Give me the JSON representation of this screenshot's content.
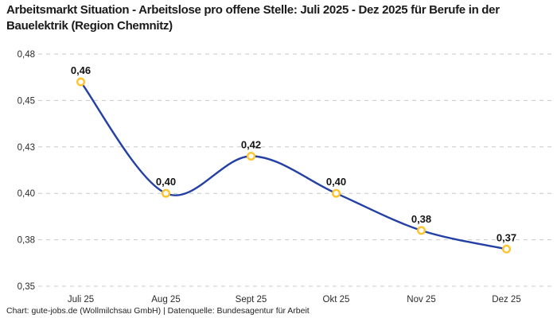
{
  "header": {
    "title": "Arbeitsmarkt Situation - Arbeitslose pro offene Stelle: Juli 2025 - Dez 2025 für Berufe in der Bauelektrik (Region Chemnitz)"
  },
  "footer": {
    "attribution": "Chart: gute-jobs.de (Wollmilchsau GmbH) | Datenquelle: Bundesagentur für Arbeit"
  },
  "chart_data": {
    "type": "line",
    "title": "Arbeitsmarkt Situation - Arbeitslose pro offene Stelle: Juli 2025 - Dez 2025 für Berufe in der Bauelektrik (Region Chemnitz)",
    "categories": [
      "Juli 25",
      "Aug 25",
      "Sept 25",
      "Okt 25",
      "Nov 25",
      "Dez 25"
    ],
    "values": [
      0.46,
      0.4,
      0.42,
      0.4,
      0.38,
      0.37
    ],
    "point_labels": [
      "0,46",
      "0,40",
      "0,42",
      "0,40",
      "0,38",
      "0,37"
    ],
    "xlabel": "",
    "ylabel": "",
    "ylim": [
      0.35,
      0.475
    ],
    "y_tick_values": [
      0.475,
      0.45,
      0.425,
      0.4,
      0.375,
      0.35
    ],
    "y_tick_labels": [
      "0,48",
      "0,45",
      "0,43",
      "0,40",
      "0,38",
      "0,35"
    ],
    "grid": "horizontal-dashed",
    "legend": "none",
    "line_style": "smooth-spline",
    "colors": {
      "line": "#2440a5",
      "marker_ring": "#fec42e",
      "marker_fill": "#ffffff",
      "grid": "#c9c9c9",
      "point_label": "#141414",
      "axis_text": "#2b2b2b",
      "title_text": "#1a1a1a"
    }
  }
}
